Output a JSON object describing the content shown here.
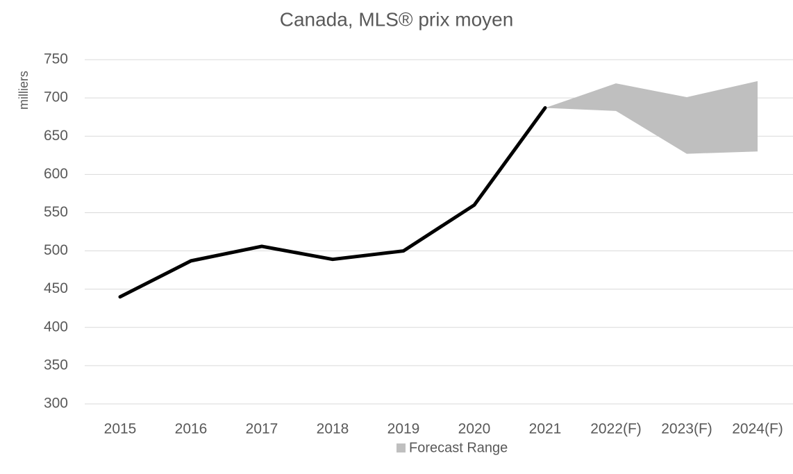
{
  "chart_data": {
    "type": "line",
    "title": "Canada, MLS® prix moyen",
    "y_label": "milliers",
    "categories": [
      "2015",
      "2016",
      "2017",
      "2018",
      "2019",
      "2020",
      "2021",
      "2022(F)",
      "2023(F)",
      "2024(F)"
    ],
    "series": [
      {
        "color": "#000000",
        "values": [
          440,
          487,
          506,
          489,
          500,
          560,
          687,
          null,
          null,
          null
        ]
      }
    ],
    "band": {
      "name": "Forecast Range",
      "color": "#bfbfbf",
      "low": [
        null,
        null,
        null,
        null,
        null,
        null,
        687,
        683,
        627,
        630
      ],
      "high": [
        null,
        null,
        null,
        null,
        null,
        null,
        687,
        719,
        701,
        722
      ]
    },
    "ylim": [
      300,
      750
    ],
    "yticks": [
      300,
      350,
      400,
      450,
      500,
      550,
      600,
      650,
      700,
      750
    ],
    "grid": true
  }
}
